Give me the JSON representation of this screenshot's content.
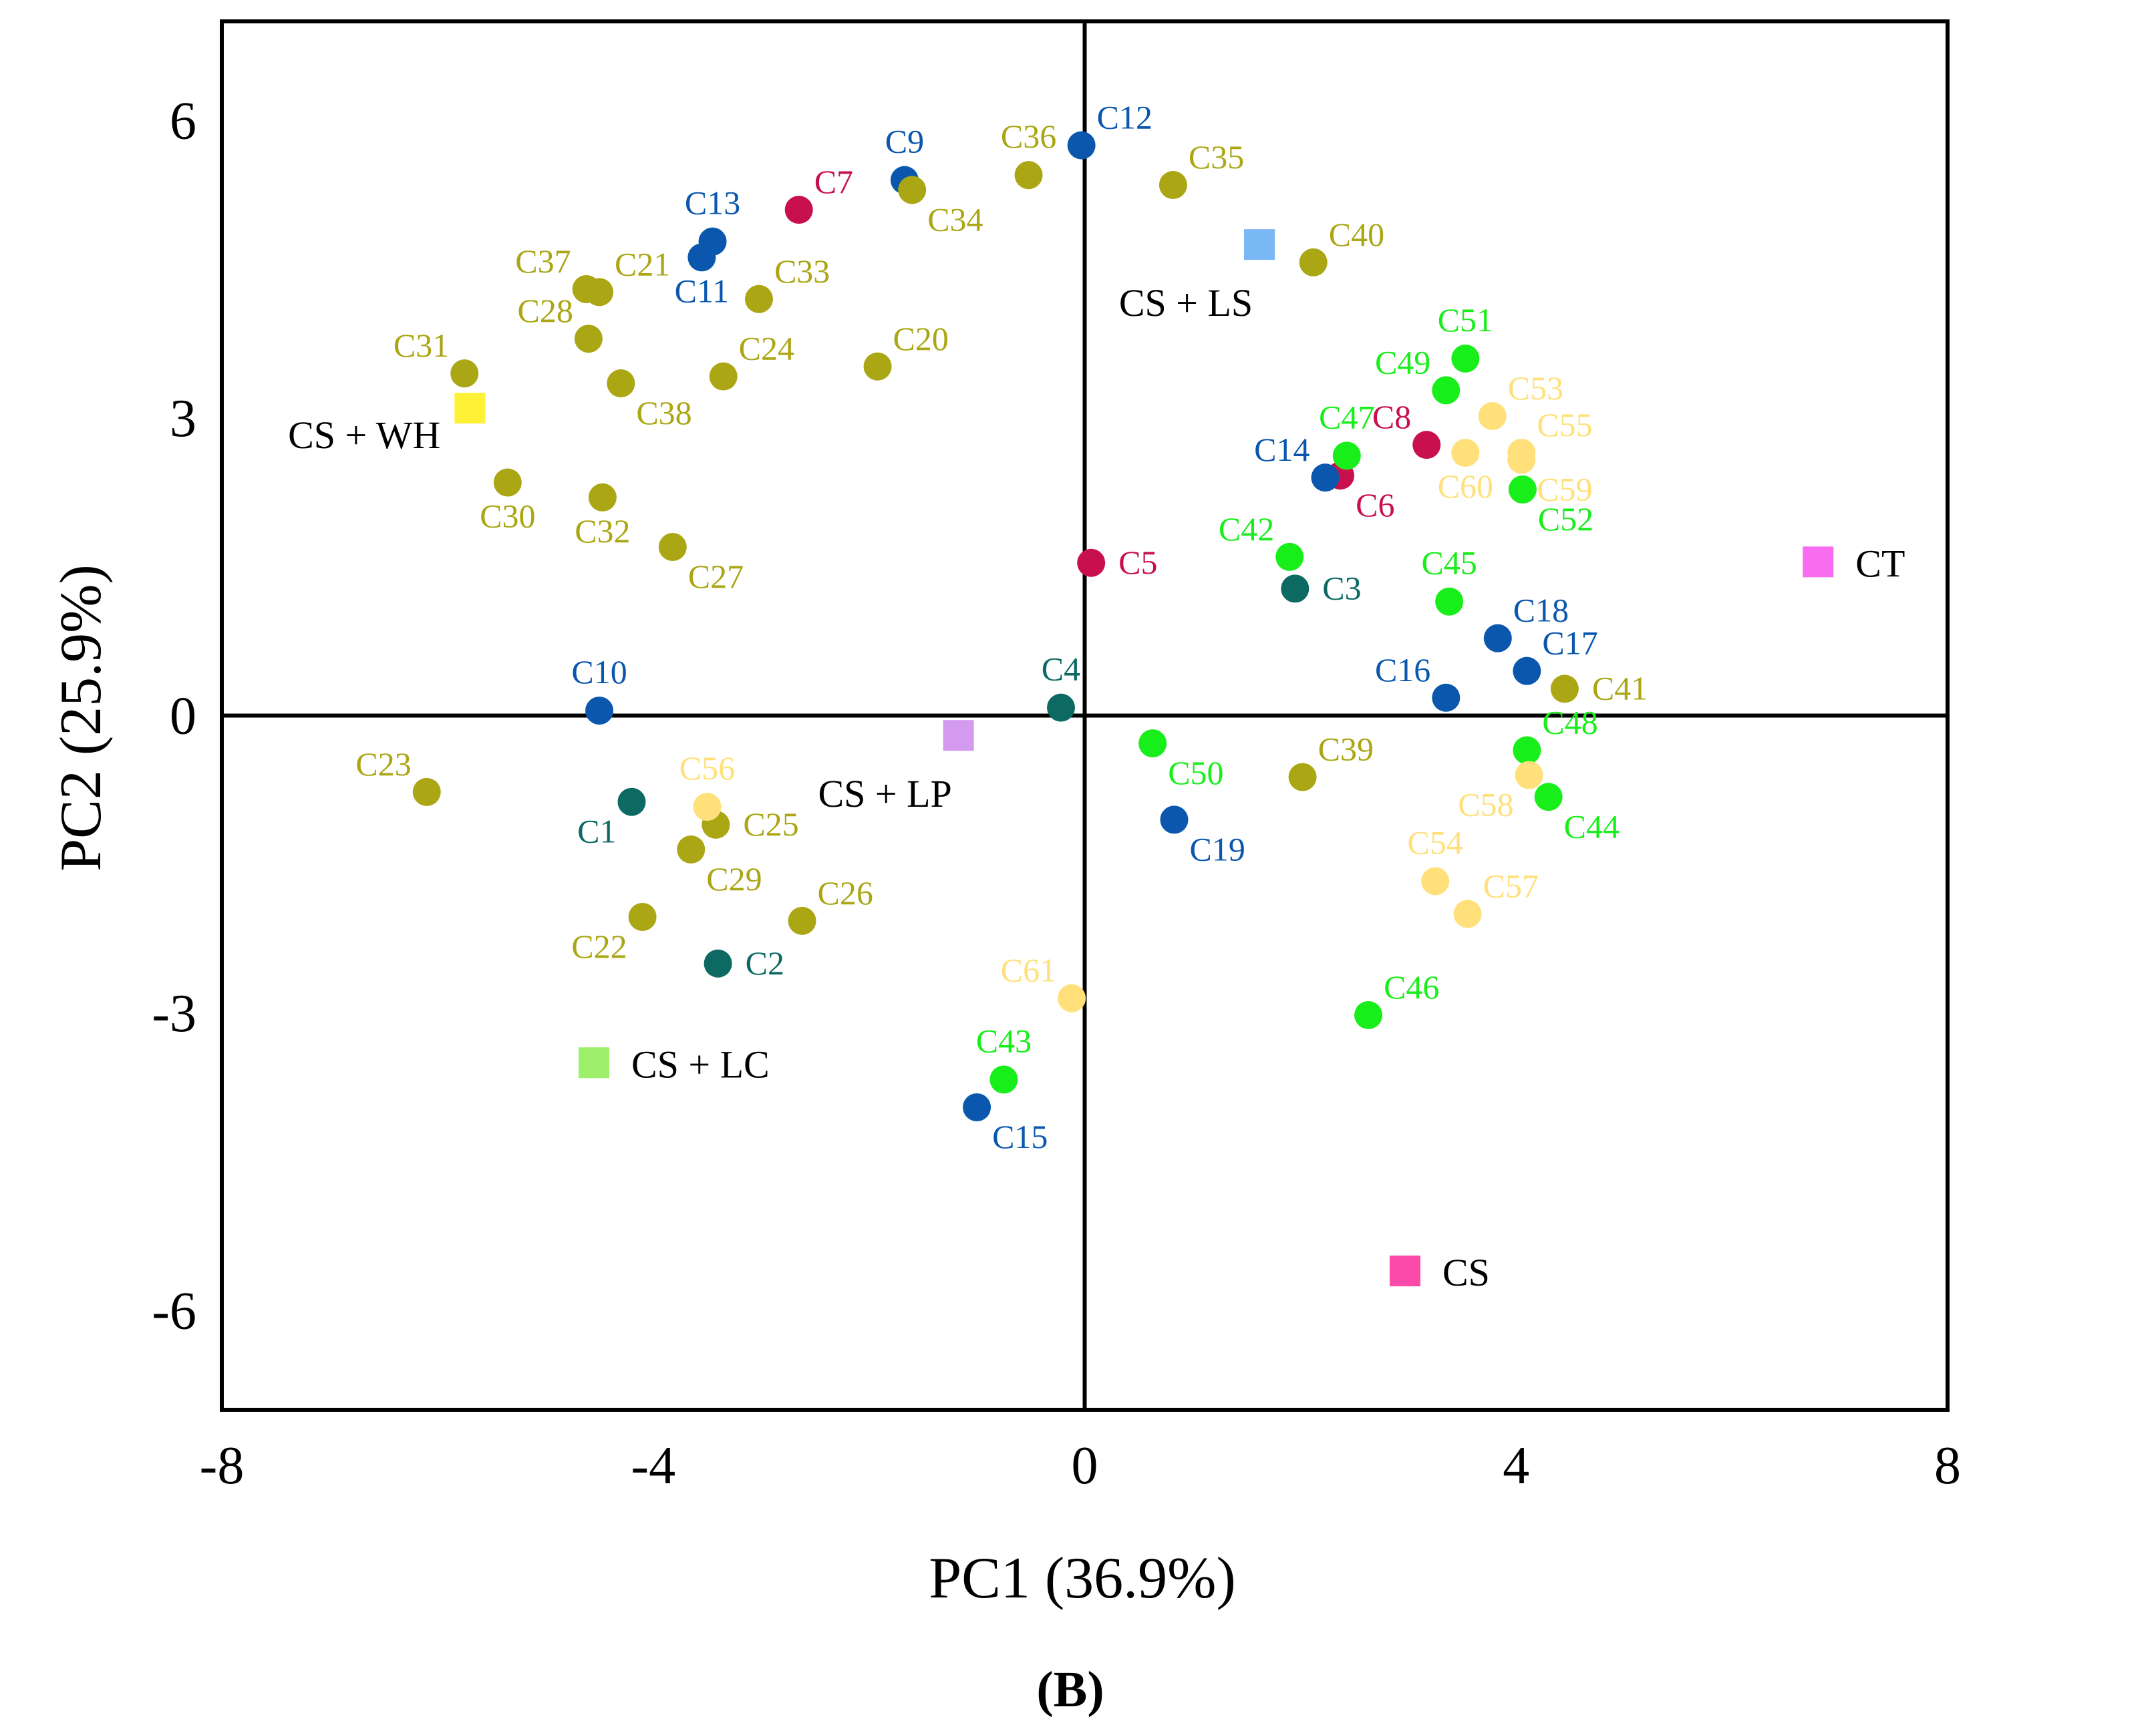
{
  "chart_data": {
    "type": "scatter",
    "xlabel": "PC1 (36.9%)",
    "ylabel": "PC2 (25.9%)",
    "panel_label": "(B)",
    "xlim": [
      -8,
      8
    ],
    "ylim": [
      -7,
      7
    ],
    "xticks": [
      "-8",
      "-4",
      "0",
      "4",
      "8"
    ],
    "yticks": [
      "6",
      "3",
      "0",
      "-3",
      "-6"
    ],
    "colors": {
      "blue": "#0a57ad",
      "olive": "#aaa614",
      "crimson": "#c8104f",
      "teal": "#0d6a63",
      "green": "#18ee1a",
      "lightyellow": "#ffe07a"
    },
    "points": [
      {
        "label": "C1",
        "x": -4.2,
        "y": -0.87,
        "color": "teal",
        "pos": "bl"
      },
      {
        "label": "C2",
        "x": -3.4,
        "y": -2.5,
        "color": "teal",
        "pos": "r"
      },
      {
        "label": "C3",
        "x": 1.95,
        "y": 1.28,
        "color": "teal",
        "pos": "r"
      },
      {
        "label": "C4",
        "x": -0.22,
        "y": 0.08,
        "color": "teal",
        "pos": "t"
      },
      {
        "label": "C5",
        "x": 0.06,
        "y": 1.54,
        "color": "crimson",
        "pos": "r"
      },
      {
        "label": "C6",
        "x": 2.37,
        "y": 2.42,
        "color": "crimson",
        "pos": "br"
      },
      {
        "label": "C7",
        "x": -2.65,
        "y": 5.1,
        "color": "crimson",
        "pos": "tr"
      },
      {
        "label": "C8",
        "x": 3.17,
        "y": 2.73,
        "color": "crimson",
        "pos": "tl"
      },
      {
        "label": "C9",
        "x": -1.67,
        "y": 5.4,
        "color": "blue",
        "pos": "t"
      },
      {
        "label": "C10",
        "x": -4.5,
        "y": 0.05,
        "color": "blue",
        "pos": "t"
      },
      {
        "label": "C11",
        "x": -3.55,
        "y": 4.62,
        "color": "blue",
        "pos": "b"
      },
      {
        "label": "C12",
        "x": -0.03,
        "y": 5.75,
        "color": "blue",
        "pos": "tr"
      },
      {
        "label": "C13",
        "x": -3.45,
        "y": 4.78,
        "color": "blue",
        "pos": "t"
      },
      {
        "label": "C14",
        "x": 2.23,
        "y": 2.4,
        "color": "blue",
        "pos": "tl"
      },
      {
        "label": "C15",
        "x": -1.0,
        "y": -3.95,
        "color": "blue",
        "pos": "br"
      },
      {
        "label": "C16",
        "x": 3.35,
        "y": 0.18,
        "color": "blue",
        "pos": "tl"
      },
      {
        "label": "C17",
        "x": 4.1,
        "y": 0.45,
        "color": "blue",
        "pos": "tr"
      },
      {
        "label": "C18",
        "x": 3.83,
        "y": 0.78,
        "color": "blue",
        "pos": "tr"
      },
      {
        "label": "C19",
        "x": 0.83,
        "y": -1.05,
        "color": "blue",
        "pos": "br"
      },
      {
        "label": "C20",
        "x": -1.92,
        "y": 3.52,
        "color": "olive",
        "pos": "tr"
      },
      {
        "label": "C21",
        "x": -4.5,
        "y": 4.27,
        "color": "olive",
        "pos": "tr"
      },
      {
        "label": "C22",
        "x": -4.1,
        "y": -2.03,
        "color": "olive",
        "pos": "bl"
      },
      {
        "label": "C23",
        "x": -6.1,
        "y": -0.77,
        "color": "olive",
        "pos": "tl"
      },
      {
        "label": "C24",
        "x": -3.35,
        "y": 3.42,
        "color": "olive",
        "pos": "tr"
      },
      {
        "label": "C25",
        "x": -3.42,
        "y": -1.1,
        "color": "olive",
        "pos": "r"
      },
      {
        "label": "C26",
        "x": -2.62,
        "y": -2.07,
        "color": "olive",
        "pos": "tr"
      },
      {
        "label": "C27",
        "x": -3.82,
        "y": 1.7,
        "color": "olive",
        "pos": "br"
      },
      {
        "label": "C28",
        "x": -4.6,
        "y": 3.8,
        "color": "olive",
        "pos": "tl"
      },
      {
        "label": "C29",
        "x": -3.65,
        "y": -1.35,
        "color": "olive",
        "pos": "br"
      },
      {
        "label": "C30",
        "x": -5.35,
        "y": 2.35,
        "color": "olive",
        "pos": "b"
      },
      {
        "label": "C31",
        "x": -5.75,
        "y": 3.45,
        "color": "olive",
        "pos": "tl"
      },
      {
        "label": "C32",
        "x": -4.47,
        "y": 2.2,
        "color": "olive",
        "pos": "b"
      },
      {
        "label": "C33",
        "x": -3.02,
        "y": 4.2,
        "color": "olive",
        "pos": "tr"
      },
      {
        "label": "C34",
        "x": -1.6,
        "y": 5.3,
        "color": "olive",
        "pos": "br"
      },
      {
        "label": "C35",
        "x": 0.82,
        "y": 5.35,
        "color": "olive",
        "pos": "tr"
      },
      {
        "label": "C36",
        "x": -0.52,
        "y": 5.45,
        "color": "olive",
        "pos": "t"
      },
      {
        "label": "C37",
        "x": -4.62,
        "y": 4.3,
        "color": "olive",
        "pos": "tl"
      },
      {
        "label": "C38",
        "x": -4.3,
        "y": 3.35,
        "color": "olive",
        "pos": "br"
      },
      {
        "label": "C39",
        "x": 2.02,
        "y": -0.62,
        "color": "olive",
        "pos": "tr"
      },
      {
        "label": "C40",
        "x": 2.12,
        "y": 4.57,
        "color": "olive",
        "pos": "tr"
      },
      {
        "label": "C41",
        "x": 4.45,
        "y": 0.27,
        "color": "olive",
        "pos": "r"
      },
      {
        "label": "C42",
        "x": 1.9,
        "y": 1.6,
        "color": "green",
        "pos": "tl"
      },
      {
        "label": "C43",
        "x": -0.75,
        "y": -3.67,
        "color": "green",
        "pos": "t"
      },
      {
        "label": "C44",
        "x": 4.3,
        "y": -0.82,
        "color": "green",
        "pos": "br"
      },
      {
        "label": "C45",
        "x": 3.38,
        "y": 1.15,
        "color": "green",
        "pos": "t"
      },
      {
        "label": "C46",
        "x": 2.63,
        "y": -3.02,
        "color": "green",
        "pos": "tr"
      },
      {
        "label": "C47",
        "x": 2.43,
        "y": 2.62,
        "color": "green",
        "pos": "t"
      },
      {
        "label": "C48",
        "x": 4.1,
        "y": -0.35,
        "color": "green",
        "pos": "tr"
      },
      {
        "label": "C49",
        "x": 3.35,
        "y": 3.28,
        "color": "green",
        "pos": "tl"
      },
      {
        "label": "C50",
        "x": 0.63,
        "y": -0.28,
        "color": "green",
        "pos": "br"
      },
      {
        "label": "C51",
        "x": 3.53,
        "y": 3.6,
        "color": "green",
        "pos": "t"
      },
      {
        "label": "C52",
        "x": 4.06,
        "y": 2.28,
        "color": "green",
        "pos": "br"
      },
      {
        "label": "C53",
        "x": 3.78,
        "y": 3.02,
        "color": "lightyellow",
        "pos": "tr"
      },
      {
        "label": "C54",
        "x": 3.25,
        "y": -1.67,
        "color": "lightyellow",
        "pos": "t"
      },
      {
        "label": "C55",
        "x": 4.05,
        "y": 2.65,
        "color": "lightyellow",
        "pos": "tr"
      },
      {
        "label": "C56",
        "x": -3.5,
        "y": -0.92,
        "color": "lightyellow",
        "pos": "t"
      },
      {
        "label": "C57",
        "x": 3.55,
        "y": -2.0,
        "color": "lightyellow",
        "pos": "tr"
      },
      {
        "label": "C58",
        "x": 4.12,
        "y": -0.6,
        "color": "lightyellow",
        "pos": "bl"
      },
      {
        "label": "C59",
        "x": 4.05,
        "y": 2.58,
        "color": "lightyellow",
        "pos": "br"
      },
      {
        "label": "C60",
        "x": 3.53,
        "y": 2.65,
        "color": "lightyellow",
        "pos": "b"
      },
      {
        "label": "C61",
        "x": -0.12,
        "y": -2.85,
        "color": "lightyellow",
        "pos": "tl"
      }
    ],
    "groups": [
      {
        "label": "CS + WH",
        "x": -5.7,
        "y": 3.1,
        "color": "#fff236",
        "pos": "bl"
      },
      {
        "label": "CS + LS",
        "x": 1.62,
        "y": 4.75,
        "color": "#7ab8f5",
        "pos": "b"
      },
      {
        "label": "CS + LP",
        "x": -1.17,
        "y": -0.2,
        "color": "#d49af0",
        "pos": "b"
      },
      {
        "label": "CS + LC",
        "x": -4.55,
        "y": -3.5,
        "color": "#9ef06a",
        "pos": "r"
      },
      {
        "label": "CT",
        "x": 6.8,
        "y": 1.55,
        "color": "#f86cf0",
        "pos": "r"
      },
      {
        "label": "CS",
        "x": 2.97,
        "y": -5.6,
        "color": "#fc4aa8",
        "pos": "r"
      }
    ]
  }
}
